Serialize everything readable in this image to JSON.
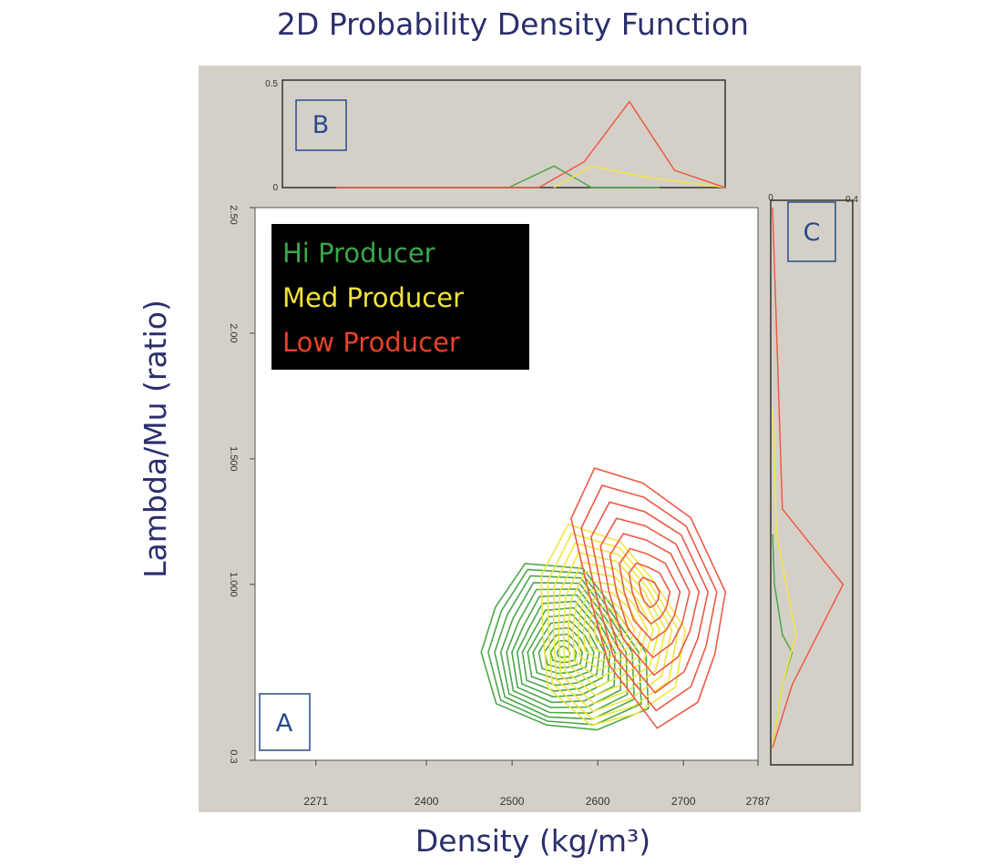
{
  "chart_data": {
    "type": "contour",
    "title": "2D Probability Density Function",
    "xlabel": "Density (kg/m³)",
    "ylabel": "Lambda/Mu (ratio)",
    "xlim": [
      2200,
      2787
    ],
    "ylim": [
      0.3,
      2.5
    ],
    "x_ticks": [
      "2271",
      "2400",
      "2500",
      "2600",
      "2700",
      "2787"
    ],
    "y_ticks": [
      "2.00",
      "1.500",
      "1.000",
      "0.3"
    ],
    "y_top_tick": "2.50",
    "panel_labels": {
      "main": "A",
      "top": "B",
      "right": "C"
    },
    "legend": [
      {
        "label": "Hi Producer",
        "color": "#3ca64a"
      },
      {
        "label": "Med Producer",
        "color": "#f0e23a"
      },
      {
        "label": "Low Producer",
        "color": "#e8412b"
      }
    ],
    "series": [
      {
        "name": "Hi Producer",
        "color": "#4aa84a",
        "center": [
          2560,
          0.73
        ],
        "sx": 45,
        "sy": 0.15,
        "levels": 14
      },
      {
        "name": "Med Producer",
        "color": "#f2e640",
        "center": [
          2610,
          0.82
        ],
        "sx": 40,
        "sy": 0.17,
        "levels": 12
      },
      {
        "name": "Low Producer",
        "color": "#ee5a45",
        "center": [
          2660,
          0.97
        ],
        "sx": 38,
        "sy": 0.22,
        "levels": 8
      }
    ],
    "marginal_x": {
      "ylim_label_top": "0.5",
      "ylim_label_bottom": "0",
      "series": [
        {
          "name": "Hi Producer",
          "color": "#4aa84a",
          "points": [
            [
              2500,
              0
            ],
            [
              2560,
              0.1
            ],
            [
              2610,
              0
            ],
            [
              2700,
              0
            ]
          ]
        },
        {
          "name": "Med Producer",
          "color": "#f2e640",
          "points": [
            [
              2560,
              0
            ],
            [
              2610,
              0.1
            ],
            [
              2680,
              0.05
            ],
            [
              2787,
              0
            ]
          ]
        },
        {
          "name": "Low Producer",
          "color": "#ee5a45",
          "points": [
            [
              2271,
              0
            ],
            [
              2540,
              0
            ],
            [
              2600,
              0.12
            ],
            [
              2660,
              0.4
            ],
            [
              2720,
              0.08
            ],
            [
              2787,
              0
            ]
          ]
        }
      ]
    },
    "marginal_y": {
      "xlim_label_left": "0",
      "xlim_label_right": "0.4",
      "series": [
        {
          "name": "Hi Producer",
          "color": "#4aa84a",
          "points": [
            [
              1.2,
              0
            ],
            [
              1.0,
              0.01
            ],
            [
              0.8,
              0.05
            ],
            [
              0.73,
              0.1
            ],
            [
              0.6,
              0.05
            ],
            [
              0.35,
              0
            ]
          ]
        },
        {
          "name": "Med Producer",
          "color": "#f2e640",
          "points": [
            [
              1.7,
              0
            ],
            [
              1.2,
              0.02
            ],
            [
              0.8,
              0.12
            ],
            [
              0.6,
              0.05
            ],
            [
              0.35,
              0
            ]
          ]
        },
        {
          "name": "Low Producer",
          "color": "#ee5a45",
          "points": [
            [
              2.5,
              0
            ],
            [
              1.3,
              0.05
            ],
            [
              1.0,
              0.36
            ],
            [
              0.6,
              0.1
            ],
            [
              0.35,
              0
            ]
          ]
        }
      ]
    }
  }
}
